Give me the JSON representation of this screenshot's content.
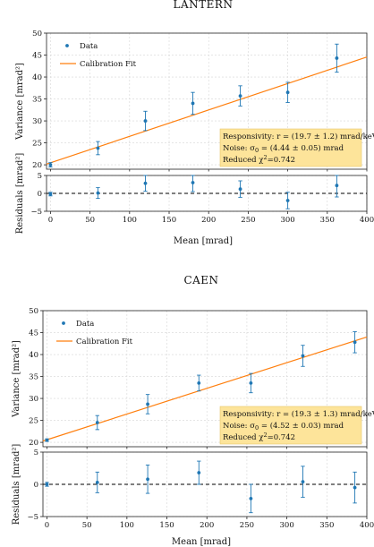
{
  "chart_data": [
    {
      "type": "scatter",
      "title": "LANTERN",
      "xlabel": "Mean [mrad]",
      "ylabel": "Variance [mrad²]",
      "residual_ylabel": "Residuals [mrad²]",
      "xlim": [
        -5,
        400
      ],
      "ylim": [
        19,
        50
      ],
      "residual_ylim": [
        -5,
        5
      ],
      "xticks": [
        "0",
        "50",
        "100",
        "150",
        "200",
        "250",
        "300",
        "350",
        "400"
      ],
      "yticks": [
        "20",
        "25",
        "30",
        "35",
        "40",
        "45",
        "50"
      ],
      "residual_yticks": [
        "-5",
        "0",
        "5"
      ],
      "legend": {
        "position": "top-left",
        "data_label": "Data",
        "fit_label": "Calibration Fit"
      },
      "series": [
        {
          "name": "Data",
          "color": "#1f77b4",
          "x": [
            0,
            60,
            120,
            180,
            240,
            300,
            362
          ],
          "y": [
            20,
            23.8,
            30,
            34,
            35.7,
            36.5,
            44.3
          ],
          "yerr": [
            0.5,
            1.5,
            2.2,
            2.5,
            2.3,
            2.3,
            3.2
          ]
        },
        {
          "name": "Calibration Fit",
          "color": "#ff7f0e",
          "type": "line",
          "x": [
            -5,
            400
          ],
          "y": [
            20.15,
            44.55
          ]
        }
      ],
      "residuals": {
        "x": [
          0,
          60,
          120,
          180,
          240,
          300,
          362
        ],
        "y": [
          -0.2,
          0.1,
          2.8,
          3.0,
          1.2,
          -2.0,
          2.2
        ],
        "yerr": [
          0.5,
          1.5,
          2.2,
          2.5,
          2.3,
          2.3,
          3.2
        ]
      },
      "info": {
        "line1": "Responsivity: r = (19.7 ± 1.2) mrad/keV",
        "line2_pre": "Noise: σ",
        "line2_sub": "0",
        "line2_post": " = (4.44 ± 0.05) mrad",
        "line3_pre": "Reduced χ",
        "line3_sup": "2",
        "line3_post": "=0.742",
        "bg": "#fde49a"
      }
    },
    {
      "type": "scatter",
      "title": "CAEN",
      "xlabel": "Mean [mrad]",
      "ylabel": "Variance [mrad²]",
      "residual_ylabel": "Residuals [mrad²]",
      "xlim": [
        -5,
        400
      ],
      "ylim": [
        19,
        50
      ],
      "residual_ylim": [
        -5,
        5
      ],
      "xticks": [
        "0",
        "50",
        "100",
        "150",
        "200",
        "250",
        "300",
        "350",
        "400"
      ],
      "yticks": [
        "20",
        "25",
        "30",
        "35",
        "40",
        "45",
        "50"
      ],
      "residual_yticks": [
        "-5",
        "0",
        "5"
      ],
      "legend": {
        "position": "top-left",
        "data_label": "Data",
        "fit_label": "Calibration Fit"
      },
      "series": [
        {
          "name": "Data",
          "color": "#1f77b4",
          "x": [
            0,
            63,
            126,
            190,
            255,
            320,
            385
          ],
          "y": [
            20.5,
            24.5,
            28.7,
            33.5,
            33.5,
            39.7,
            42.8
          ],
          "yerr": [
            0.3,
            1.6,
            2.2,
            1.8,
            2.2,
            2.4,
            2.4
          ]
        },
        {
          "name": "Calibration Fit",
          "color": "#ff7f0e",
          "type": "line",
          "x": [
            -5,
            400
          ],
          "y": [
            20.3,
            44.0
          ]
        }
      ],
      "residuals": {
        "x": [
          0,
          63,
          126,
          190,
          255,
          320,
          385
        ],
        "y": [
          0.0,
          0.3,
          0.8,
          1.8,
          -2.2,
          0.4,
          -0.5
        ],
        "yerr": [
          0.3,
          1.6,
          2.2,
          1.8,
          2.2,
          2.4,
          2.4
        ]
      },
      "info": {
        "line1": "Responsivity: r = (19.3 ± 1.3) mrad/keV",
        "line2_pre": "Noise: σ",
        "line2_sub": "0",
        "line2_post": " = (4.52 ± 0.03) mrad",
        "line3_pre": "Reduced χ",
        "line3_sup": "2",
        "line3_post": "=0.742",
        "bg": "#fde49a"
      }
    }
  ]
}
